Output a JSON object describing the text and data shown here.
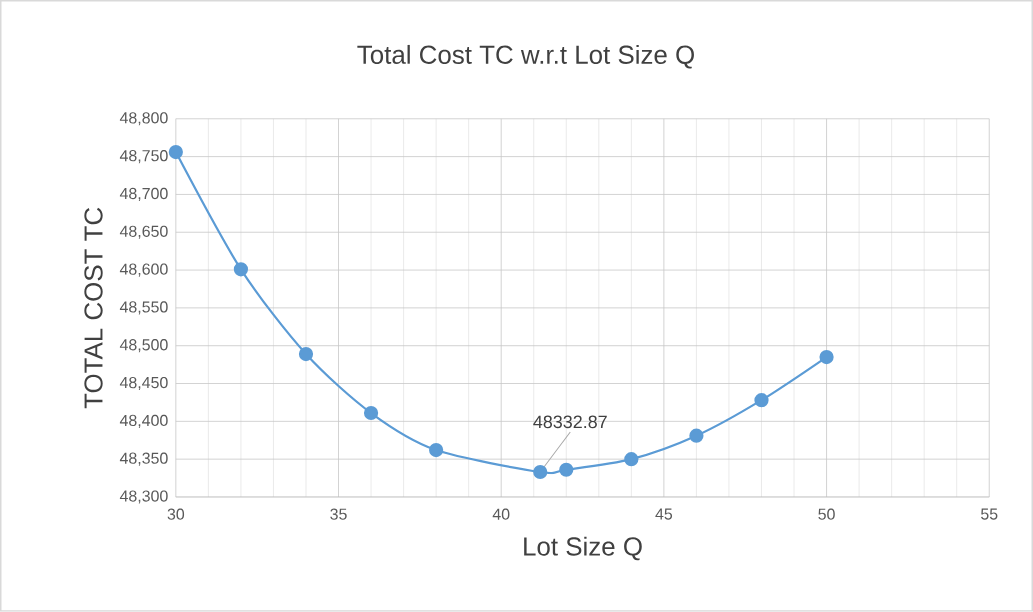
{
  "chart_data": {
    "type": "line",
    "title": "Total Cost TC w.r.t Lot Size Q",
    "xlabel": "Lot Size Q",
    "ylabel": "TOTAL COST TC",
    "x": [
      30,
      32,
      34,
      36,
      38,
      41.2,
      42,
      44,
      46,
      48,
      50
    ],
    "series": [
      {
        "color": "#5b9bd5",
        "values": [
          48756,
          48601,
          48489,
          48411,
          48362,
          48333,
          48336,
          48350,
          48381,
          48428,
          48485
        ]
      }
    ],
    "annotations": [
      {
        "text": "48332.87",
        "x": 41.2,
        "y": 48333
      }
    ],
    "xlim": [
      30,
      55
    ],
    "xticks": [
      30,
      35,
      40,
      45,
      50,
      55
    ],
    "ylim": [
      48300,
      48800
    ],
    "yticks": [
      {
        "value": 48300,
        "label": "48,300"
      },
      {
        "value": 48350,
        "label": "48,350"
      },
      {
        "value": 48400,
        "label": "48,400"
      },
      {
        "value": 48450,
        "label": "48,450"
      },
      {
        "value": 48500,
        "label": "48,500"
      },
      {
        "value": 48550,
        "label": "48,550"
      },
      {
        "value": 48600,
        "label": "48,600"
      },
      {
        "value": 48650,
        "label": "48,650"
      },
      {
        "value": 48700,
        "label": "48,700"
      },
      {
        "value": 48750,
        "label": "48,750"
      },
      {
        "value": 48800,
        "label": "48,800"
      }
    ],
    "grid": true,
    "marker": "circle",
    "line_style": "solid"
  }
}
